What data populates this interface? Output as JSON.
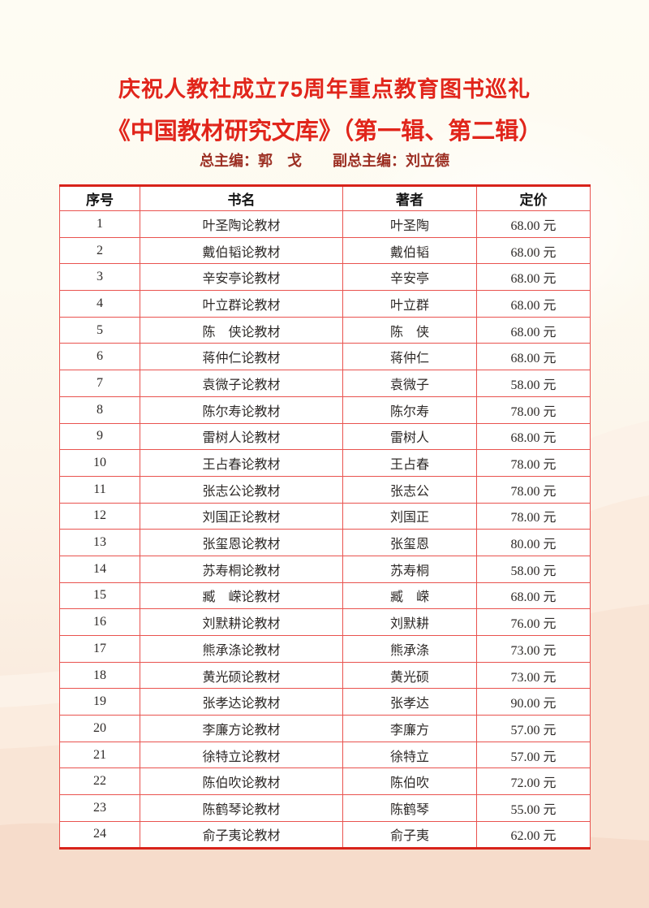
{
  "page": {
    "title_line1": "庆祝人教社成立75周年重点教育图书巡礼",
    "title_line2": "《中国教材研究文库》（第一辑、第二辑）",
    "editors": {
      "chief": "总主编：郭　戈",
      "deputy": "副总主编：刘立德"
    }
  },
  "colors": {
    "title_red": "#e1251b",
    "editor_red": "#9c2f23",
    "table_border_red": "#e9534f",
    "table_outer_red": "#d8231a",
    "bg_top_cream": "#fefcf3",
    "bg_bottom_pink": "#f8e3d5"
  },
  "table": {
    "columns": [
      "序号",
      "书名",
      "著者",
      "定价"
    ],
    "rows": [
      {
        "no": "1",
        "title": "叶圣陶论教材",
        "author": "叶圣陶",
        "price": "68.00 元"
      },
      {
        "no": "2",
        "title": "戴伯韬论教材",
        "author": "戴伯韬",
        "price": "68.00 元"
      },
      {
        "no": "3",
        "title": "辛安亭论教材",
        "author": "辛安亭",
        "price": "68.00 元"
      },
      {
        "no": "4",
        "title": "叶立群论教材",
        "author": "叶立群",
        "price": "68.00 元"
      },
      {
        "no": "5",
        "title": "陈　侠论教材",
        "author": "陈　侠",
        "price": "68.00 元"
      },
      {
        "no": "6",
        "title": "蒋仲仁论教材",
        "author": "蒋仲仁",
        "price": "68.00 元"
      },
      {
        "no": "7",
        "title": "袁微子论教材",
        "author": "袁微子",
        "price": "58.00 元"
      },
      {
        "no": "8",
        "title": "陈尔寿论教材",
        "author": "陈尔寿",
        "price": "78.00 元"
      },
      {
        "no": "9",
        "title": "雷树人论教材",
        "author": "雷树人",
        "price": "68.00 元"
      },
      {
        "no": "10",
        "title": "王占春论教材",
        "author": "王占春",
        "price": "78.00 元"
      },
      {
        "no": "11",
        "title": "张志公论教材",
        "author": "张志公",
        "price": "78.00 元"
      },
      {
        "no": "12",
        "title": "刘国正论教材",
        "author": "刘国正",
        "price": "78.00 元"
      },
      {
        "no": "13",
        "title": "张玺恩论教材",
        "author": "张玺恩",
        "price": "80.00 元"
      },
      {
        "no": "14",
        "title": "苏寿桐论教材",
        "author": "苏寿桐",
        "price": "58.00 元"
      },
      {
        "no": "15",
        "title": "臧　嵘论教材",
        "author": "臧　嵘",
        "price": "68.00 元"
      },
      {
        "no": "16",
        "title": "刘默耕论教材",
        "author": "刘默耕",
        "price": "76.00 元"
      },
      {
        "no": "17",
        "title": "熊承涤论教材",
        "author": "熊承涤",
        "price": "73.00 元"
      },
      {
        "no": "18",
        "title": "黄光硕论教材",
        "author": "黄光硕",
        "price": "73.00 元"
      },
      {
        "no": "19",
        "title": "张孝达论教材",
        "author": "张孝达",
        "price": "90.00 元"
      },
      {
        "no": "20",
        "title": "李廉方论教材",
        "author": "李廉方",
        "price": "57.00 元"
      },
      {
        "no": "21",
        "title": "徐特立论教材",
        "author": "徐特立",
        "price": "57.00 元"
      },
      {
        "no": "22",
        "title": "陈伯吹论教材",
        "author": "陈伯吹",
        "price": "72.00 元"
      },
      {
        "no": "23",
        "title": "陈鹤琴论教材",
        "author": "陈鹤琴",
        "price": "55.00 元"
      },
      {
        "no": "24",
        "title": "俞子夷论教材",
        "author": "俞子夷",
        "price": "62.00 元"
      }
    ]
  }
}
